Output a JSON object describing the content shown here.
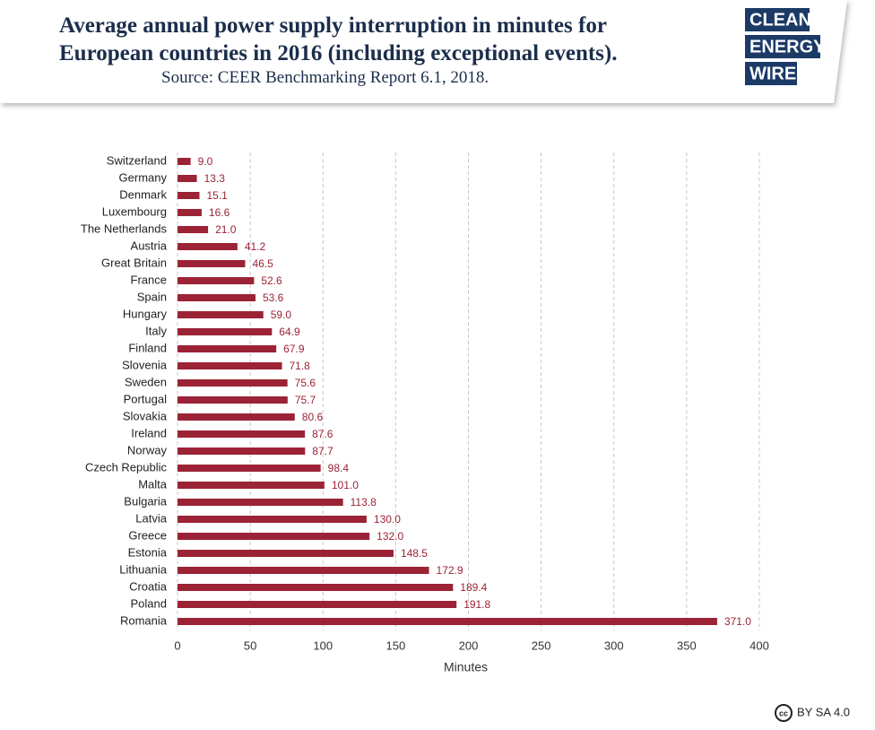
{
  "chart_data": {
    "type": "bar",
    "orientation": "horizontal",
    "title": "Average annual power supply interruption in minutes for European countries in 2016 (including exceptional events).",
    "subtitle": "Source: CEER Benchmarking Report 6.1, 2018.",
    "categories": [
      "Switzerland",
      "Germany",
      "Denmark",
      "Luxembourg",
      "The Netherlands",
      "Austria",
      "Great Britain",
      "France",
      "Spain",
      "Hungary",
      "Italy",
      "Finland",
      "Slovenia",
      "Sweden",
      "Portugal",
      "Slovakia",
      "Ireland",
      "Norway",
      "Czech Republic",
      "Malta",
      "Bulgaria",
      "Latvia",
      "Greece",
      "Estonia",
      "Lithuania",
      "Croatia",
      "Poland",
      "Romania"
    ],
    "values": [
      9.0,
      13.3,
      15.1,
      16.6,
      21.0,
      41.2,
      46.5,
      52.6,
      53.6,
      59.0,
      64.9,
      67.9,
      71.8,
      75.6,
      75.7,
      80.6,
      87.6,
      87.7,
      98.4,
      101.0,
      113.8,
      130.0,
      132.0,
      148.5,
      172.9,
      189.4,
      191.8,
      371.0
    ],
    "value_labels": [
      "9.0",
      "13.3",
      "15.1",
      "16.6",
      "21.0",
      "41.2",
      "46.5",
      "52.6",
      "53.6",
      "59.0",
      "64.9",
      "67.9",
      "71.8",
      "75.6",
      "75.7",
      "80.6",
      "87.6",
      "87.7",
      "98.4",
      "101.0",
      "113.8",
      "130.0",
      "132.0",
      "148.5",
      "172.9",
      "189.4",
      "191.8",
      "371.0"
    ],
    "color": "#9b2335",
    "xlabel": "Minutes",
    "xlim": [
      0,
      400
    ],
    "xticks": [
      0,
      50,
      100,
      150,
      200,
      250,
      300,
      350,
      400
    ],
    "grid": true
  },
  "logo": [
    "CLEAN",
    "ENERGY",
    "WIRE"
  ],
  "license_icon": "cc",
  "license": "BY SA 4.0"
}
